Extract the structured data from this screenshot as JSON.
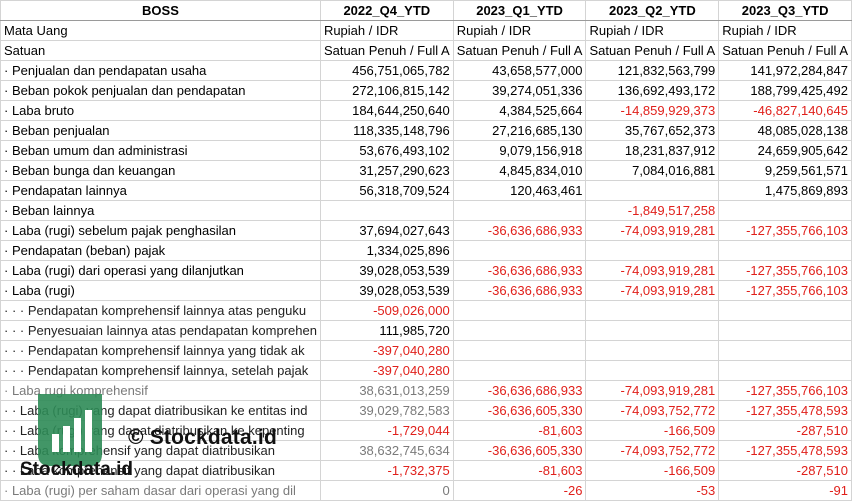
{
  "header": {
    "title": "BOSS",
    "periods": [
      "2022_Q4_YTD",
      "2023_Q1_YTD",
      "2023_Q2_YTD",
      "2023_Q3_YTD"
    ]
  },
  "meta_rows": [
    {
      "label": "Mata Uang",
      "values": [
        "Rupiah / IDR",
        "Rupiah / IDR",
        "Rupiah / IDR",
        "Rupiah / IDR"
      ]
    },
    {
      "label": "Satuan",
      "values": [
        "Satuan Penuh / Full A",
        "Satuan Penuh / Full A",
        "Satuan Penuh / Full A",
        "Satuan Penuh / Full A"
      ]
    }
  ],
  "rows": [
    {
      "label": "· Penjualan dan pendapatan usaha",
      "values": [
        "456,751,065,782",
        "43,658,577,000",
        "121,832,563,799",
        "141,972,284,847"
      ]
    },
    {
      "label": "· Beban pokok penjualan dan pendapatan",
      "values": [
        "272,106,815,142",
        "39,274,051,336",
        "136,692,493,172",
        "188,799,425,492"
      ]
    },
    {
      "label": "· Laba bruto",
      "values": [
        "184,644,250,640",
        "4,384,525,664",
        "-14,859,929,373",
        "-46,827,140,645"
      ]
    },
    {
      "label": "· Beban penjualan",
      "values": [
        "118,335,148,796",
        "27,216,685,130",
        "35,767,652,373",
        "48,085,028,138"
      ]
    },
    {
      "label": "· Beban umum dan administrasi",
      "values": [
        "53,676,493,102",
        "9,079,156,918",
        "18,231,837,912",
        "24,659,905,642"
      ]
    },
    {
      "label": "· Beban bunga dan keuangan",
      "values": [
        "31,257,290,623",
        "4,845,834,010",
        "7,084,016,881",
        "9,259,561,571"
      ]
    },
    {
      "label": "· Pendapatan lainnya",
      "values": [
        "56,318,709,524",
        "120,463,461",
        "",
        "1,475,869,893"
      ]
    },
    {
      "label": "· Beban lainnya",
      "values": [
        "",
        "",
        "-1,849,517,258",
        ""
      ]
    },
    {
      "label": "· Laba (rugi) sebelum pajak penghasilan",
      "values": [
        "37,694,027,643",
        "-36,636,686,933",
        "-74,093,919,281",
        "-127,355,766,103"
      ]
    },
    {
      "label": "· Pendapatan (beban) pajak",
      "values": [
        "1,334,025,896",
        "",
        "",
        ""
      ]
    },
    {
      "label": "· Laba (rugi) dari operasi yang dilanjutkan",
      "values": [
        "39,028,053,539",
        "-36,636,686,933",
        "-74,093,919,281",
        "-127,355,766,103"
      ]
    },
    {
      "label": "· Laba (rugi)",
      "values": [
        "39,028,053,539",
        "-36,636,686,933",
        "-74,093,919,281",
        "-127,355,766,103"
      ]
    },
    {
      "label": "· · · Pendapatan komprehensif lainnya atas penguku",
      "values": [
        "-509,026,000",
        "",
        "",
        ""
      ]
    },
    {
      "label": "· · · Penyesuaian lainnya atas pendapatan komprehen",
      "values": [
        "111,985,720",
        "",
        "",
        ""
      ]
    },
    {
      "label": "· · · Pendapatan komprehensif lainnya yang tidak ak",
      "values": [
        "-397,040,280",
        "",
        "",
        ""
      ]
    },
    {
      "label": "· · · Pendapatan komprehensif lainnya, setelah pajak",
      "values": [
        "-397,040,280",
        "",
        "",
        ""
      ]
    },
    {
      "label": "· Laba rugi komprehensif",
      "values": [
        "38,631,013,259",
        "-36,636,686,933",
        "-74,093,919,281",
        "-127,355,766,103"
      ]
    },
    {
      "label": "· · Laba (rugi) yang dapat diatribusikan ke entitas ind",
      "values": [
        "39,029,782,583",
        "-36,636,605,330",
        "-74,093,752,772",
        "-127,355,478,593"
      ]
    },
    {
      "label": "· · Laba (rugi) yang dapat diatribusikan ke kepenting",
      "values": [
        "-1,729,044",
        "-81,603",
        "-166,509",
        "-287,510"
      ]
    },
    {
      "label": "· · Laba komprehensif yang dapat diatribusikan",
      "values": [
        "38,632,745,634",
        "-36,636,605,330",
        "-74,093,752,772",
        "-127,355,478,593"
      ]
    },
    {
      "label": "· · Laba komprehensif yang dapat diatribusikan",
      "values": [
        "-1,732,375",
        "-81,603",
        "-166,509",
        "-287,510"
      ]
    },
    {
      "label": "· Laba (rugi) per saham dasar dari operasi yang dil",
      "values": [
        "0",
        "-26",
        "-53",
        "-91"
      ]
    }
  ],
  "watermark": {
    "text": "© Stockdata.id",
    "logo_text": "Stockdata.id"
  },
  "colors": {
    "negative": "#e0201b",
    "logo_green": "#2e8b57"
  }
}
